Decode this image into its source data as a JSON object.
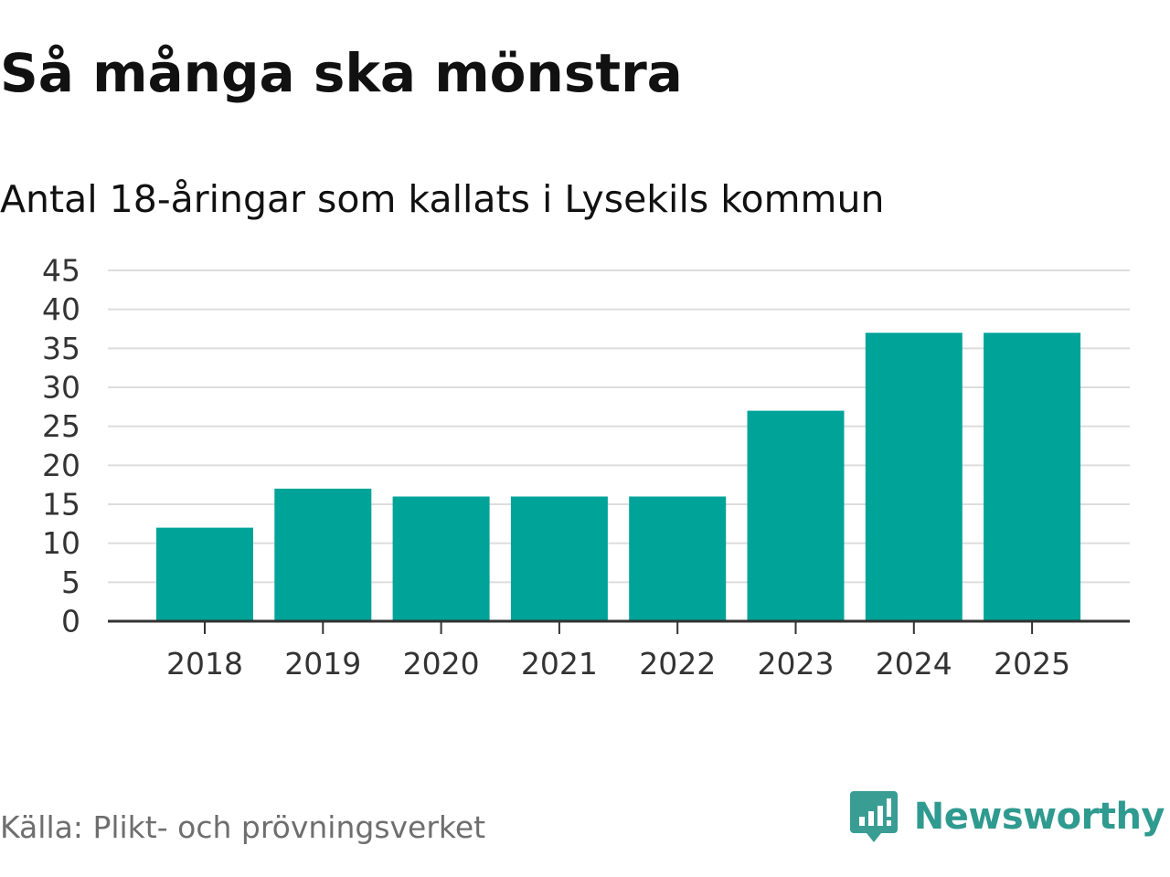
{
  "title": "Så många ska mönstra",
  "subtitle": "Antal 18-åringar som kallats i Lysekils kommun",
  "source": "Källa: Plikt- och prövningsverket",
  "brand": {
    "name": "Newsworthy",
    "icon": "newsworthy-logo-icon",
    "color": "#3a9d93"
  },
  "colors": {
    "bar": "#00a398",
    "grid": "#dddddd",
    "axis": "#333333"
  },
  "chart_data": {
    "type": "bar",
    "title": "Så många ska mönstra",
    "subtitle": "Antal 18-åringar som kallats i Lysekils kommun",
    "xlabel": "",
    "ylabel": "",
    "categories": [
      "2018",
      "2019",
      "2020",
      "2021",
      "2022",
      "2023",
      "2024",
      "2025"
    ],
    "values": [
      12,
      17,
      16,
      16,
      16,
      27,
      37,
      37
    ],
    "ylim": [
      0,
      45
    ],
    "yticks": [
      0,
      5,
      10,
      15,
      20,
      25,
      30,
      35,
      40,
      45
    ],
    "grid": true,
    "legend": "none"
  }
}
